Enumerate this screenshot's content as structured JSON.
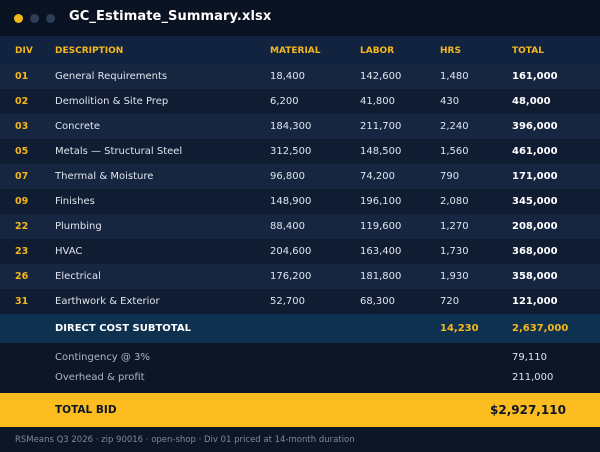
{
  "window": {
    "title": "GC_Estimate_Summary.xlsx",
    "colors": {
      "accent": "#f5b81c",
      "background": "#0c1626",
      "header": "#12233f"
    }
  },
  "columns": {
    "div": "DIV",
    "description": "DESCRIPTION",
    "material": "MATERIAL",
    "labor": "LABOR",
    "hrs": "HRS",
    "total": "TOTAL"
  },
  "rows": [
    {
      "div": "01",
      "description": "General Requirements",
      "material": "18,400",
      "labor": "142,600",
      "hrs": "1,480",
      "total": "161,000"
    },
    {
      "div": "02",
      "description": "Demolition & Site Prep",
      "material": "6,200",
      "labor": "41,800",
      "hrs": "430",
      "total": "48,000"
    },
    {
      "div": "03",
      "description": "Concrete",
      "material": "184,300",
      "labor": "211,700",
      "hrs": "2,240",
      "total": "396,000"
    },
    {
      "div": "05",
      "description": "Metals — Structural Steel",
      "material": "312,500",
      "labor": "148,500",
      "hrs": "1,560",
      "total": "461,000"
    },
    {
      "div": "07",
      "description": "Thermal & Moisture",
      "material": "96,800",
      "labor": "74,200",
      "hrs": "790",
      "total": "171,000"
    },
    {
      "div": "09",
      "description": "Finishes",
      "material": "148,900",
      "labor": "196,100",
      "hrs": "2,080",
      "total": "345,000"
    },
    {
      "div": "22",
      "description": "Plumbing",
      "material": "88,400",
      "labor": "119,600",
      "hrs": "1,270",
      "total": "208,000"
    },
    {
      "div": "23",
      "description": "HVAC",
      "material": "204,600",
      "labor": "163,400",
      "hrs": "1,730",
      "total": "368,000"
    },
    {
      "div": "26",
      "description": "Electrical",
      "material": "176,200",
      "labor": "181,800",
      "hrs": "1,930",
      "total": "358,000"
    },
    {
      "div": "31",
      "description": "Earthwork & Exterior",
      "material": "52,700",
      "labor": "68,300",
      "hrs": "720",
      "total": "121,000"
    }
  ],
  "subtotal": {
    "label": "DIRECT COST SUBTOTAL",
    "hrs": "14,230",
    "total": "2,637,000"
  },
  "adjustments": [
    {
      "label": "Contingency @ 3%",
      "value": "79,110"
    },
    {
      "label": "Overhead & profit",
      "value": "211,000"
    }
  ],
  "total_bid": {
    "label": "TOTAL BID",
    "value": "$2,927,110"
  },
  "footer": "RSMeans Q3 2026 · zip 90016 · open-shop · Div 01 priced at 14-month duration"
}
